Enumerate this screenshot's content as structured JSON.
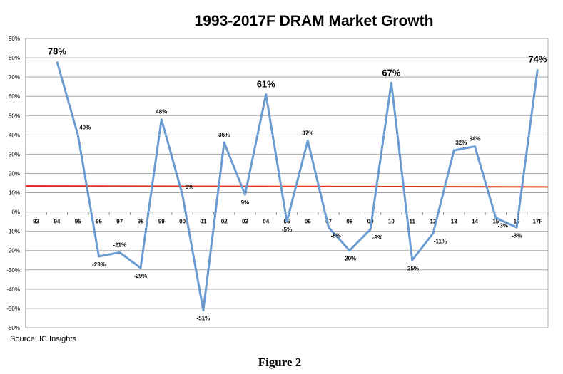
{
  "chart_data": {
    "type": "line",
    "title": "1993-2017F DRAM Market Growth",
    "categories": [
      "93",
      "94",
      "95",
      "96",
      "97",
      "98",
      "99",
      "00",
      "01",
      "02",
      "03",
      "04",
      "05",
      "06",
      "07",
      "08",
      "09",
      "10",
      "11",
      "12",
      "13",
      "14",
      "15",
      "16",
      "17F"
    ],
    "series": [
      {
        "values": [
          null,
          78,
          40,
          -23,
          -21,
          -29,
          48,
          9,
          -51,
          36,
          9,
          61,
          -5,
          37,
          -8,
          -20,
          -9,
          67,
          -25,
          -11,
          32,
          34,
          -3,
          -8,
          74
        ],
        "labels": [
          "",
          "78%",
          "40%",
          "-23%",
          "-21%",
          "-29%",
          "48%",
          "9%",
          "-51%",
          "36%",
          "9%",
          "61%",
          "-5%",
          "37%",
          "-8%",
          "-20%",
          "-9%",
          "67%",
          "-25%",
          "-11%",
          "32%",
          "34%",
          "-3%",
          "-8%",
          "74%"
        ],
        "color": "#6a9bd1"
      }
    ],
    "trendline": {
      "start": 13.5,
      "end": 13.0,
      "color": "#e3311c"
    },
    "ylim": [
      -60,
      90
    ],
    "yticks": [
      90,
      80,
      70,
      60,
      50,
      40,
      30,
      20,
      10,
      0,
      -10,
      -20,
      -30,
      -40,
      -50,
      -60
    ],
    "ytick_labels": [
      "90%",
      "80%",
      "70%",
      "60%",
      "50%",
      "40%",
      "30%",
      "20%",
      "10%",
      "0%",
      "-10%",
      "-20%",
      "-30%",
      "-40%",
      "-50%",
      "-60%"
    ],
    "grid": true,
    "xlabel": "",
    "ylabel": ""
  },
  "source": "Source:  IC Insights",
  "caption": "Figure 2"
}
